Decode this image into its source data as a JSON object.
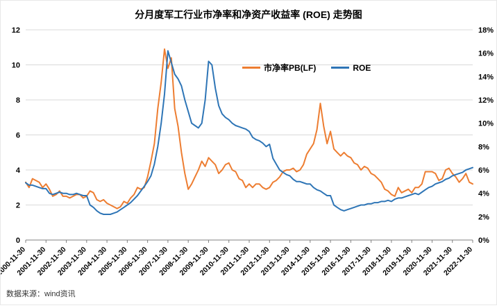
{
  "title": "分月度军工行业市净率和净资产收益率 (ROE) 走势图",
  "source": "数据来源：wind资讯",
  "chart_data": {
    "type": "line",
    "title": "分月度军工行业市净率和净资产收益率 (ROE) 走势图",
    "legend_position": "top-center-inside",
    "grid": true,
    "grid_color": "#d9d9d9",
    "axis_color": "#808080",
    "left_axis": {
      "min": 0,
      "max": 12,
      "step": 2,
      "labels": [
        "0",
        "2",
        "4",
        "6",
        "8",
        "10",
        "12"
      ]
    },
    "right_axis": {
      "min": 0,
      "max": 18,
      "step": 2,
      "labels": [
        "0%",
        "2%",
        "4%",
        "6%",
        "8%",
        "10%",
        "12%",
        "14%",
        "16%",
        "18%"
      ]
    },
    "x_tick_labels": [
      "2000-11-30",
      "2001-11-30",
      "2002-11-30",
      "2003-11-30",
      "2004-11-30",
      "2005-11-30",
      "2006-11-30",
      "2007-11-30",
      "2008-11-30",
      "2009-11-30",
      "2010-11-30",
      "2011-11-30",
      "2012-11-30",
      "2013-11-30",
      "2014-11-30",
      "2015-11-30",
      "2016-11-30",
      "2017-11-30",
      "2018-11-30",
      "2019-11-30",
      "2020-11-30",
      "2021-11-30",
      "2022-11-30"
    ],
    "x_note": "monthly data sampled every 2 months from 2000-11 to 2022-11; year ticks fall every 6 points",
    "series": [
      {
        "name": "市净率PB(LF)",
        "axis": "left",
        "color": "#ED7D31",
        "values": [
          3.3,
          3.0,
          3.5,
          3.4,
          3.3,
          3.0,
          3.2,
          2.9,
          2.5,
          2.6,
          2.8,
          2.5,
          2.5,
          2.4,
          2.5,
          2.6,
          2.6,
          2.4,
          2.5,
          2.8,
          2.7,
          2.3,
          2.2,
          2.3,
          2.1,
          2.0,
          1.9,
          1.8,
          1.9,
          2.2,
          2.1,
          2.4,
          2.6,
          3.0,
          2.9,
          3.0,
          3.6,
          4.5,
          5.5,
          7.5,
          9.0,
          10.9,
          9.8,
          10.4,
          7.5,
          6.5,
          5.0,
          3.8,
          2.9,
          3.2,
          3.6,
          4.0,
          4.5,
          4.2,
          4.7,
          4.5,
          4.3,
          3.8,
          4.0,
          4.3,
          4.4,
          4.0,
          3.9,
          3.5,
          3.4,
          3.0,
          3.2,
          3.0,
          3.2,
          3.2,
          3.0,
          2.9,
          3.0,
          3.3,
          3.4,
          3.6,
          3.9,
          4.0,
          4.0,
          4.1,
          3.9,
          4.0,
          4.3,
          4.9,
          5.2,
          5.5,
          6.3,
          7.8,
          6.5,
          5.5,
          6.2,
          5.2,
          5.0,
          4.8,
          5.0,
          4.8,
          4.7,
          4.4,
          4.3,
          4.0,
          4.2,
          4.1,
          3.8,
          3.7,
          3.5,
          3.3,
          2.9,
          2.8,
          2.6,
          2.5,
          3.0,
          2.7,
          2.8,
          2.9,
          2.7,
          3.0,
          3.0,
          3.2,
          3.9,
          3.9,
          3.9,
          3.8,
          3.4,
          3.5,
          4.0,
          4.1,
          3.8,
          3.6,
          3.3,
          3.5,
          3.8,
          3.3,
          3.2
        ]
      },
      {
        "name": "ROE",
        "axis": "right",
        "color": "#2E75B6",
        "values": [
          4.9,
          4.7,
          4.7,
          4.6,
          4.5,
          4.4,
          4.4,
          4.0,
          3.9,
          4.0,
          4.1,
          4.0,
          4.0,
          3.9,
          3.9,
          4.0,
          3.9,
          3.8,
          3.8,
          3.0,
          2.8,
          2.5,
          2.3,
          2.2,
          2.2,
          2.2,
          2.3,
          2.4,
          2.6,
          2.8,
          3.0,
          3.2,
          3.5,
          3.8,
          4.2,
          4.6,
          5.0,
          5.5,
          6.5,
          8.0,
          10.0,
          12.5,
          16.2,
          15.2,
          14.2,
          13.8,
          13.2,
          12.0,
          11.0,
          10.0,
          9.8,
          9.6,
          10.0,
          12.0,
          15.3,
          15.0,
          13.0,
          11.5,
          10.8,
          10.5,
          10.3,
          10.0,
          9.8,
          9.7,
          9.6,
          9.5,
          9.3,
          8.8,
          8.6,
          8.5,
          8.3,
          8.0,
          8.2,
          7.0,
          6.5,
          6.0,
          5.8,
          5.6,
          5.5,
          5.2,
          5.0,
          5.0,
          4.9,
          4.8,
          4.8,
          4.5,
          4.3,
          4.2,
          4.0,
          3.8,
          3.8,
          3.0,
          2.8,
          2.6,
          2.5,
          2.6,
          2.7,
          2.8,
          2.9,
          3.0,
          3.0,
          3.1,
          3.1,
          3.2,
          3.2,
          3.3,
          3.3,
          3.4,
          3.3,
          3.5,
          3.6,
          3.6,
          3.7,
          3.8,
          3.9,
          4.0,
          3.9,
          4.1,
          4.3,
          4.5,
          4.6,
          4.8,
          4.9,
          5.0,
          5.2,
          5.3,
          5.5,
          5.6,
          5.7,
          5.8,
          6.0,
          6.1,
          6.2
        ]
      }
    ]
  }
}
